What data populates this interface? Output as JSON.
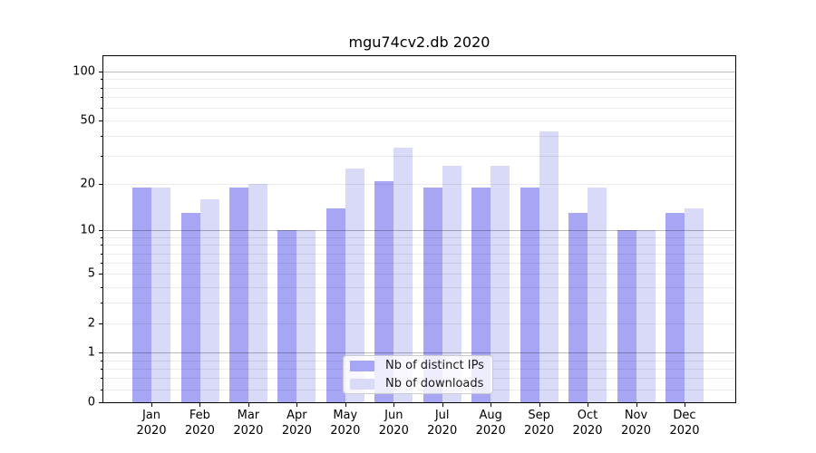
{
  "title": "mgu74cv2.db 2020",
  "chart_data": {
    "type": "bar",
    "title": "mgu74cv2.db 2020",
    "categories": [
      "Jan",
      "Feb",
      "Mar",
      "Apr",
      "May",
      "Jun",
      "Jul",
      "Aug",
      "Sep",
      "Oct",
      "Nov",
      "Dec"
    ],
    "category_year": "2020",
    "series": [
      {
        "name": "Nb of distinct IPs",
        "color": "#a6a6f5",
        "values": [
          19,
          13,
          19,
          10,
          14,
          21,
          19,
          19,
          19,
          13,
          10,
          13
        ]
      },
      {
        "name": "Nb of downloads",
        "color": "#d9d9f8",
        "values": [
          19,
          16,
          20,
          10,
          25,
          34,
          26,
          26,
          43,
          19,
          10,
          14
        ]
      }
    ],
    "y_axis": {
      "scale": "log1p",
      "ylim": [
        0,
        126
      ],
      "ticks": [
        {
          "label": "100",
          "value": 100
        },
        {
          "label": "50",
          "value": 50
        },
        {
          "label": "20",
          "value": 20
        },
        {
          "label": "10",
          "value": 10
        },
        {
          "label": "5",
          "value": 5
        },
        {
          "label": "2",
          "value": 2
        },
        {
          "label": "1",
          "value": 1
        },
        {
          "label": "0",
          "value": 0
        }
      ],
      "minor_gridlines": [
        0.2,
        0.4,
        0.6,
        0.8,
        2,
        3,
        4,
        5,
        6,
        7,
        8,
        9,
        20,
        30,
        40,
        50,
        60,
        70,
        80,
        90
      ],
      "major_gridlines": [
        1,
        10,
        100
      ],
      "minor_tick_marks": [
        0.2,
        0.4,
        0.6,
        0.8,
        3,
        4,
        6,
        7,
        8,
        9,
        30,
        40,
        60,
        70,
        80,
        90
      ]
    },
    "grid": true,
    "legend": {
      "position": "lower center",
      "entries": [
        "Nb of distinct IPs",
        "Nb of downloads"
      ]
    }
  }
}
